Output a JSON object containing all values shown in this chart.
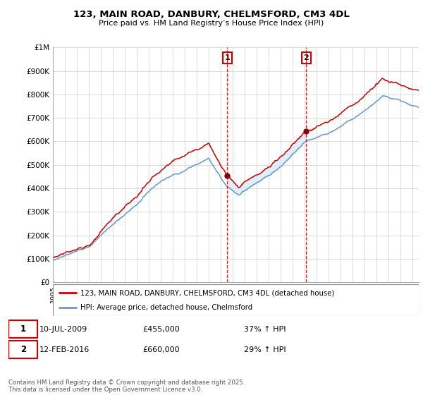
{
  "title": "123, MAIN ROAD, DANBURY, CHELMSFORD, CM3 4DL",
  "subtitle": "Price paid vs. HM Land Registry’s House Price Index (HPI)",
  "ylabel_ticks": [
    "£0",
    "£100K",
    "£200K",
    "£300K",
    "£400K",
    "£500K",
    "£600K",
    "£700K",
    "£800K",
    "£900K",
    "£1M"
  ],
  "ytick_values": [
    0,
    100000,
    200000,
    300000,
    400000,
    500000,
    600000,
    700000,
    800000,
    900000,
    1000000
  ],
  "ylim": [
    0,
    1000000
  ],
  "xlim_start": 1995.0,
  "xlim_end": 2025.5,
  "sale1_date": 2009.53,
  "sale1_price": 455000,
  "sale2_date": 2016.12,
  "sale2_price": 660000,
  "legend_line1": "123, MAIN ROAD, DANBURY, CHELMSFORD, CM3 4DL (detached house)",
  "legend_line2": "HPI: Average price, detached house, Chelmsford",
  "footnote": "Contains HM Land Registry data © Crown copyright and database right 2025.\nThis data is licensed under the Open Government Licence v3.0.",
  "red_color": "#cc0000",
  "blue_color": "#6699cc",
  "shade_color": "#d6e8f7",
  "background_color": "#ffffff",
  "grid_color": "#cccccc",
  "n_points": 500
}
